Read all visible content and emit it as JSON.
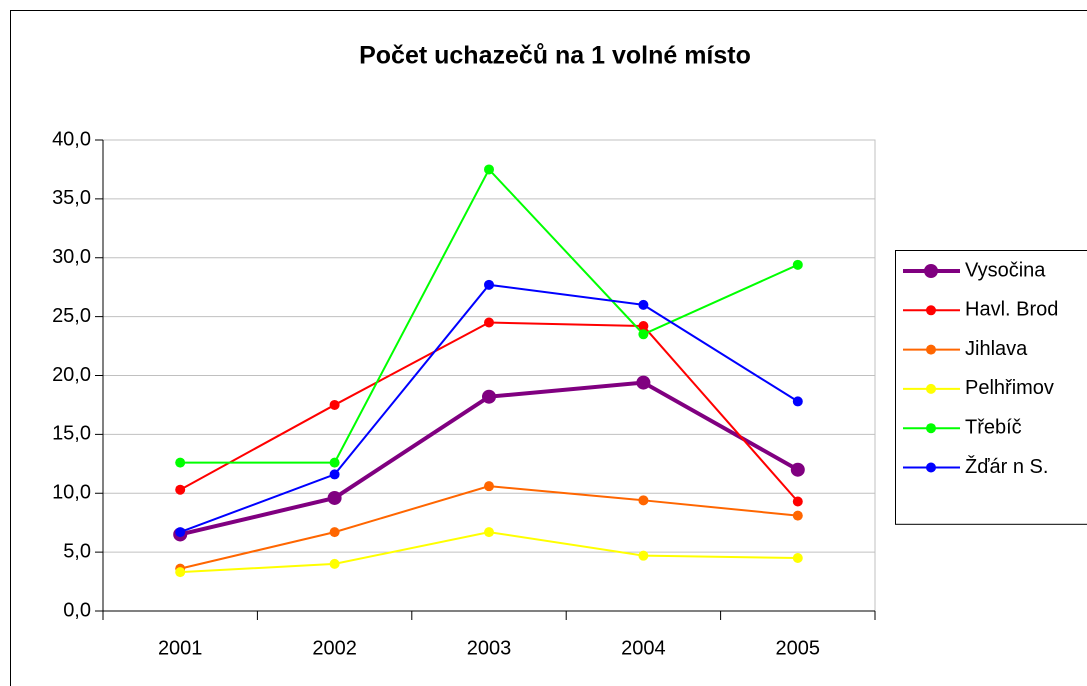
{
  "chart_data": {
    "type": "line",
    "title": "Počet uchazečů na 1 volné místo",
    "categories": [
      "2001",
      "2002",
      "2003",
      "2004",
      "2005"
    ],
    "series": [
      {
        "name": "Vysočina",
        "color": "#800080",
        "width": 4,
        "values": [
          6.5,
          9.6,
          18.2,
          19.4,
          12.0
        ]
      },
      {
        "name": "Havl. Brod",
        "color": "#ff0000",
        "width": 2,
        "values": [
          10.3,
          17.5,
          24.5,
          24.2,
          9.3
        ]
      },
      {
        "name": "Jihlava",
        "color": "#ff6600",
        "width": 2,
        "values": [
          3.6,
          6.7,
          10.6,
          9.4,
          8.1
        ]
      },
      {
        "name": "Pelhřimov",
        "color": "#ffff00",
        "width": 2,
        "values": [
          3.3,
          4.0,
          6.7,
          4.7,
          4.5
        ]
      },
      {
        "name": "Třebíč",
        "color": "#00ff00",
        "width": 2,
        "values": [
          12.6,
          12.6,
          37.5,
          23.5,
          29.4
        ]
      },
      {
        "name": "Žďár n S.",
        "color": "#0000ff",
        "width": 2,
        "values": [
          6.7,
          11.6,
          27.7,
          26.0,
          17.8
        ]
      }
    ],
    "ylim": [
      0,
      40
    ],
    "yticks": [
      {
        "value": 0,
        "label": "0,0"
      },
      {
        "value": 5,
        "label": "5,0"
      },
      {
        "value": 10,
        "label": "10,0"
      },
      {
        "value": 15,
        "label": "15,0"
      },
      {
        "value": 20,
        "label": "20,0"
      },
      {
        "value": 25,
        "label": "25,0"
      },
      {
        "value": 30,
        "label": "30,0"
      },
      {
        "value": 35,
        "label": "35,0"
      },
      {
        "value": 40,
        "label": "40,0"
      }
    ],
    "grid": true,
    "legend": "right"
  }
}
